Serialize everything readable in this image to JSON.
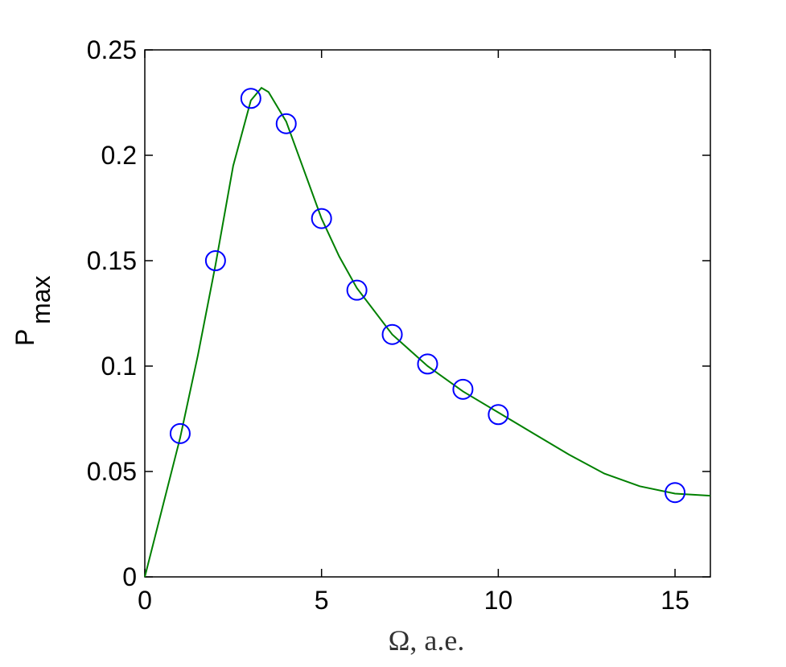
{
  "chart_data": {
    "type": "line",
    "xlabel": "Ω, a.e.",
    "ylabel": "P",
    "ylabel_subscript": "max",
    "xlim": [
      0,
      16
    ],
    "ylim": [
      0,
      0.25
    ],
    "xticks": [
      0,
      5,
      10,
      15
    ],
    "yticks": [
      0,
      0.05,
      0.1,
      0.15,
      0.2,
      0.25
    ],
    "grid": false,
    "series": [
      {
        "type": "line",
        "color": "#008000",
        "x": [
          0,
          0.5,
          1,
          1.5,
          2,
          2.5,
          3,
          3.3,
          3.5,
          4,
          4.5,
          5,
          5.5,
          6,
          7,
          8,
          9,
          10,
          11,
          12,
          13,
          14,
          15,
          16
        ],
        "values": [
          0,
          0.033,
          0.066,
          0.105,
          0.148,
          0.195,
          0.226,
          0.232,
          0.23,
          0.216,
          0.193,
          0.17,
          0.152,
          0.137,
          0.115,
          0.1,
          0.088,
          0.078,
          0.068,
          0.058,
          0.049,
          0.043,
          0.0395,
          0.0385
        ]
      },
      {
        "type": "scatter",
        "color": "#0000ff",
        "x": [
          1,
          2,
          3,
          4,
          5,
          6,
          7,
          8,
          9,
          10,
          15
        ],
        "values": [
          0.068,
          0.15,
          0.227,
          0.215,
          0.17,
          0.136,
          0.115,
          0.101,
          0.089,
          0.077,
          0.04
        ]
      }
    ]
  }
}
